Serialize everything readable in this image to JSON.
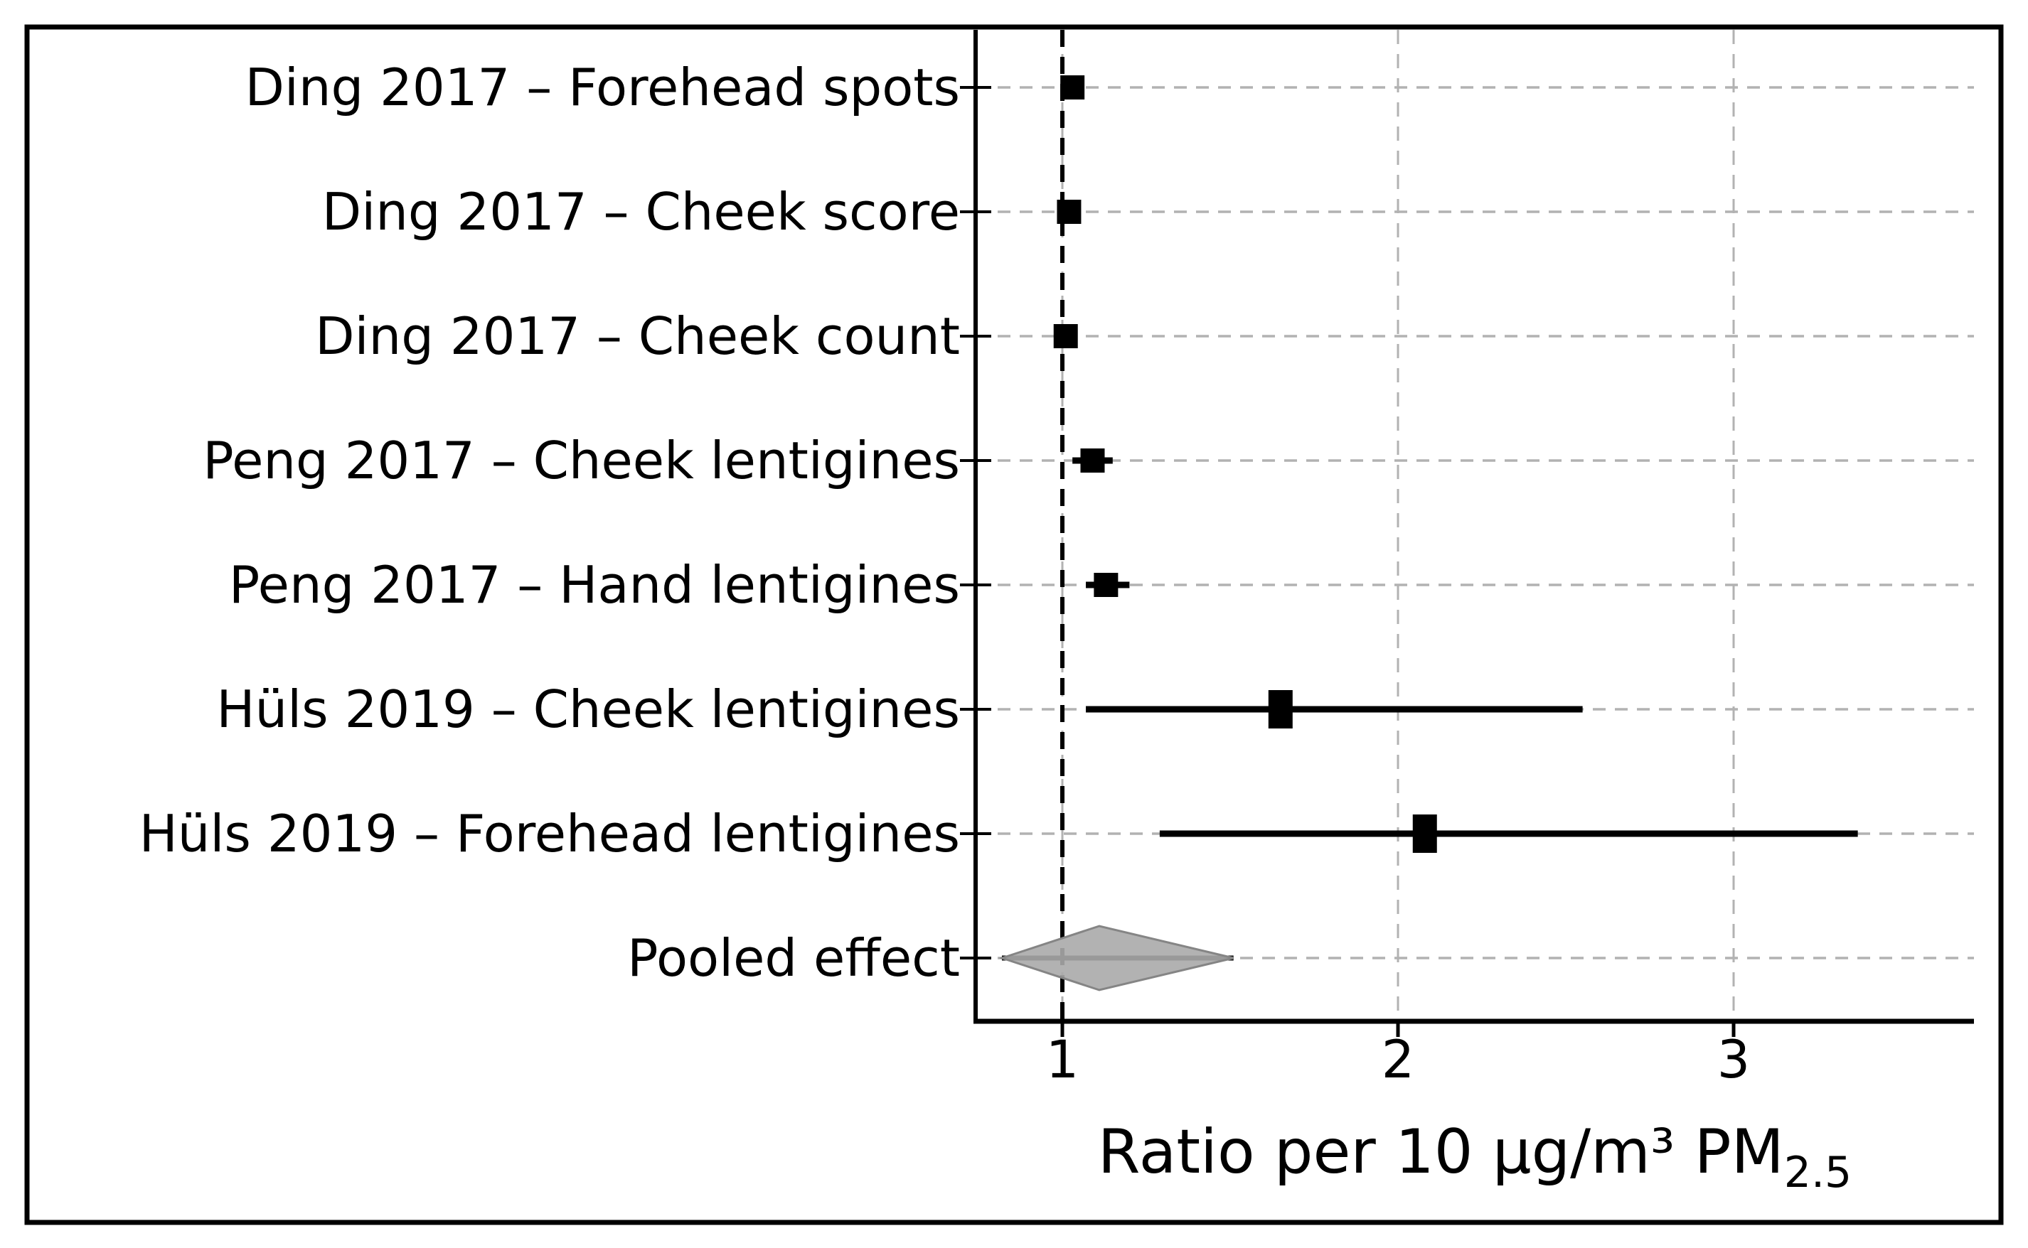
{
  "chart_data": {
    "type": "scatter",
    "variant": "forest_plot",
    "title": "",
    "xlabel": "Ratio per 10 µg/m³ PM",
    "xlabel_subscript": "2.5",
    "ylabel": "",
    "x_ticks": [
      "1",
      "2",
      "3"
    ],
    "x_tick_values": [
      1,
      2,
      3
    ],
    "xlim": [
      0.74,
      3.72
    ],
    "reference_line_x": 1,
    "grid": true,
    "legend": false,
    "studies": [
      {
        "label": "Ding 2017 – Forehead spots",
        "estimate": 1.03,
        "ci_low": 1.0,
        "ci_high": 1.05
      },
      {
        "label": "Ding 2017 – Cheek score",
        "estimate": 1.02,
        "ci_low": 0.99,
        "ci_high": 1.04
      },
      {
        "label": "Ding 2017 – Cheek count",
        "estimate": 1.01,
        "ci_low": 0.99,
        "ci_high": 1.03
      },
      {
        "label": "Peng 2017 – Cheek lentigines",
        "estimate": 1.09,
        "ci_low": 1.03,
        "ci_high": 1.15
      },
      {
        "label": "Peng 2017 – Hand lentigines",
        "estimate": 1.13,
        "ci_low": 1.07,
        "ci_high": 1.2
      },
      {
        "label": "Hüls 2019 – Cheek lentigines",
        "estimate": 1.65,
        "ci_low": 1.07,
        "ci_high": 2.55
      },
      {
        "label": "Hüls 2019 – Forehead lentigines",
        "estimate": 2.08,
        "ci_low": 1.29,
        "ci_high": 3.37
      }
    ],
    "pooled": {
      "label": "Pooled effect",
      "estimate": 1.11,
      "ci_low": 0.82,
      "ci_high": 1.51
    },
    "colors": {
      "marker": "#000000",
      "ci_line": "#000000",
      "reference_line": "#000000",
      "gridline": "#b2b2b2",
      "diamond_fill": "#aaaaaa",
      "diamond_edge": "#858585",
      "frame": "#000000",
      "text": "#000000"
    }
  }
}
